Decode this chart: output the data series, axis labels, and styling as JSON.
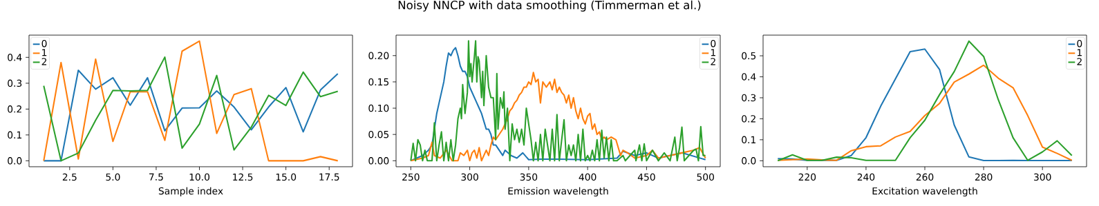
{
  "chart_data": [
    {
      "type": "line",
      "xlabel": "Sample index",
      "legend": "top left",
      "x": [
        1,
        2,
        3,
        4,
        5,
        6,
        7,
        8,
        9,
        10,
        11,
        12,
        13,
        14,
        15,
        16,
        17,
        18
      ],
      "xlim": [
        0.15,
        18.85
      ],
      "ylim": [
        -0.023,
        0.486
      ],
      "xticks": [
        2.5,
        {
          "value": 5,
          "label": "5.0"
        },
        7.5,
        {
          "value": 10,
          "label": "10.0"
        },
        12.5,
        {
          "value": 15,
          "label": "15.0"
        },
        17.5
      ],
      "yticks": [
        {
          "value": 0,
          "label": "0.0"
        },
        0.1,
        0.2,
        0.3,
        0.4
      ],
      "series": [
        {
          "name": "0",
          "color": "#1f77b4",
          "values": [
            0,
            0,
            0.35,
            0.277,
            0.321,
            0.215,
            0.321,
            0.116,
            0.204,
            0.205,
            0.27,
            0.208,
            0.12,
            0.208,
            0.283,
            0.112,
            0.274,
            0.337
          ]
        },
        {
          "name": "1",
          "color": "#ff7f0e",
          "values": [
            0,
            0.38,
            0.007,
            0.393,
            0.075,
            0.267,
            0.267,
            0.079,
            0.424,
            0.463,
            0.106,
            0.256,
            0.279,
            0,
            0,
            0,
            0.016,
            0
          ]
        },
        {
          "name": "2",
          "color": "#2ca02c",
          "values": [
            0.29,
            0,
            0.03,
            0.157,
            0.272,
            0.27,
            0.272,
            0.401,
            0.049,
            0.142,
            0.33,
            0.042,
            0.13,
            0.253,
            0.214,
            0.343,
            0.248,
            0.269
          ]
        }
      ]
    },
    {
      "type": "line",
      "title": "Noisy NNCP with data smoothing (Timmerman et al.)",
      "xlabel": "Emission wavelength",
      "legend": "top right",
      "xlim": [
        237.5,
        512.5
      ],
      "ylim": [
        -0.0114,
        0.239
      ],
      "xticks": [
        250,
        300,
        350,
        400,
        450,
        500
      ],
      "yticks": [
        {
          "value": 0,
          "label": "0.00"
        },
        0.05,
        {
          "value": 0.1,
          "label": "0.10"
        },
        0.15,
        {
          "value": 0.2,
          "label": "0.20"
        }
      ],
      "series": [
        {
          "name": "0",
          "color": "#1f77b4",
          "x": [
            250,
            255,
            260,
            265,
            268,
            270,
            272,
            274,
            276,
            278,
            280,
            282,
            284,
            286,
            288,
            290,
            292,
            294,
            296,
            298,
            300,
            302,
            304,
            306,
            308,
            310,
            312,
            314,
            316,
            318,
            320,
            322,
            325,
            328,
            330,
            335,
            340,
            345,
            350,
            360,
            375,
            400,
            425,
            430,
            440,
            450,
            460,
            480,
            500
          ],
          "values": [
            0,
            0.005,
            0.01,
            0.02,
            0.03,
            0.06,
            0.09,
            0.11,
            0.13,
            0.15,
            0.18,
            0.205,
            0.2,
            0.21,
            0.215,
            0.2,
            0.18,
            0.17,
            0.17,
            0.16,
            0.14,
            0.13,
            0.12,
            0.11,
            0.1,
            0.09,
            0.075,
            0.06,
            0.06,
            0.05,
            0.03,
            0.03,
            0.02,
            0.01,
            0.02,
            0.01,
            0.005,
            0.015,
            0.002,
            0.003,
            0.003,
            0.002,
            0.005,
            0.018,
            0.01,
            0.015,
            0.005,
            0.015,
            0.002
          ]
        },
        {
          "name": "1",
          "color": "#ff7f0e",
          "x": [
            250,
            260,
            265,
            268,
            270,
            275,
            280,
            285,
            290,
            292,
            295,
            298,
            300,
            302,
            304,
            306,
            308,
            310,
            312,
            314,
            316,
            318,
            320,
            322,
            325,
            328,
            330,
            332,
            334,
            336,
            338,
            340,
            342,
            344,
            346,
            348,
            350,
            352,
            354,
            356,
            358,
            360,
            362,
            365,
            368,
            370,
            372,
            374,
            376,
            378,
            380,
            382,
            384,
            386,
            388,
            390,
            392,
            394,
            396,
            398,
            400,
            402,
            404,
            406,
            408,
            410,
            412,
            414,
            416,
            420,
            424,
            428,
            430,
            434,
            440,
            450,
            455,
            460,
            470,
            480,
            490,
            495,
            500
          ],
          "values": [
            0,
            0.005,
            0.01,
            0.035,
            0.01,
            0.005,
            0.02,
            0,
            0,
            0.015,
            0.01,
            0.02,
            0,
            0.015,
            0.02,
            0.005,
            0.025,
            0,
            0.01,
            0.02,
            0.01,
            0.03,
            0.045,
            0.04,
            0.05,
            0.06,
            0.07,
            0.08,
            0.095,
            0.1,
            0.11,
            0.115,
            0.125,
            0.13,
            0.14,
            0.14,
            0.15,
            0.145,
            0.168,
            0.15,
            0.155,
            0.11,
            0.15,
            0.14,
            0.15,
            0.135,
            0.155,
            0.13,
            0.14,
            0.13,
            0.125,
            0.11,
            0.125,
            0.1,
            0.12,
            0.095,
            0.08,
            0.1,
            0.08,
            0.07,
            0.085,
            0.09,
            0.06,
            0.07,
            0.05,
            0.055,
            0.04,
            0.045,
            0.04,
            0.045,
            0.04,
            0.01,
            0.02,
            0.015,
            0.005,
            0.01,
            0.02,
            0.005,
            0.01,
            0.015,
            0.02,
            0.025,
            0.005
          ]
        },
        {
          "name": "2",
          "color": "#2ca02c",
          "x": [
            250,
            252,
            254,
            256,
            258,
            260,
            262,
            264,
            268,
            270,
            272,
            274,
            276,
            278,
            280,
            282,
            284,
            286,
            288,
            290,
            292,
            293,
            294,
            296,
            298,
            299,
            300,
            301,
            302,
            304,
            305,
            306,
            307,
            308,
            310,
            311,
            312,
            314,
            316,
            318,
            320,
            322,
            323,
            324,
            326,
            328,
            329,
            330,
            332,
            334,
            336,
            338,
            340,
            342,
            344,
            346,
            348,
            350,
            352,
            354,
            356,
            358,
            360,
            362,
            364,
            366,
            368,
            370,
            372,
            374,
            376,
            378,
            380,
            382,
            384,
            386,
            388,
            390,
            392,
            394,
            396,
            398,
            400,
            402,
            404,
            406,
            408,
            410,
            412,
            414,
            416,
            418,
            420,
            422,
            425,
            430,
            432,
            440,
            441,
            444,
            446,
            448,
            450,
            455,
            460,
            465,
            470,
            474,
            476,
            478,
            480,
            482,
            490,
            492,
            494,
            496,
            498,
            500
          ],
          "values": [
            0,
            0.033,
            0,
            0.04,
            0.03,
            0,
            0.02,
            0,
            0,
            0.072,
            0,
            0.03,
            0.055,
            0,
            0.035,
            0,
            0.04,
            0,
            0.03,
            0.08,
            0.1,
            0.08,
            0.145,
            0.09,
            0.13,
            0.228,
            0.16,
            0.185,
            0.15,
            0.2,
            0.228,
            0.15,
            0.198,
            0.19,
            0.12,
            0.17,
            0.105,
            0.2,
            0.14,
            0.12,
            0.12,
            0.04,
            0.166,
            0.06,
            0.12,
            0.1,
            0.131,
            0.06,
            0.1,
            0,
            0.07,
            0.04,
            0.06,
            0.035,
            0.06,
            0.03,
            0.1,
            0.07,
            0.04,
            0,
            0.035,
            0,
            0.05,
            0,
            0.06,
            0.03,
            0,
            0.06,
            0,
            0.088,
            0,
            0.04,
            0.078,
            0,
            0.03,
            0.01,
            0.03,
            0,
            0.05,
            0,
            0.06,
            0,
            0.01,
            0,
            0.02,
            0,
            0.04,
            0,
            0.058,
            0.005,
            0.045,
            0,
            0.04,
            0,
            0,
            0.01,
            0,
            0.02,
            0,
            0.03,
            0,
            0.032,
            0,
            0.02,
            0,
            0.015,
            0,
            0.045,
            0,
            0.025,
            0.064,
            0,
            0.02,
            0.022,
            0,
            0.065,
            0.01,
            0.01
          ]
        }
      ]
    },
    {
      "type": "line",
      "xlabel": "Excitation wavelength",
      "legend": "top right",
      "x": [
        210,
        215,
        220,
        225,
        230,
        235,
        240,
        245,
        250,
        255,
        260,
        265,
        270,
        275,
        280,
        285,
        290,
        295,
        300,
        305,
        310
      ],
      "xlim": [
        205,
        315
      ],
      "ylim": [
        -0.0285,
        0.5985
      ],
      "xticks": [
        220,
        240,
        260,
        280,
        300
      ],
      "yticks": [
        {
          "value": 0,
          "label": "0.0"
        },
        0.1,
        0.2,
        0.3,
        0.4,
        0.5
      ],
      "series": [
        {
          "name": "0",
          "color": "#1f77b4",
          "values": [
            0.01,
            0.008,
            0.002,
            0.003,
            0.002,
            0.025,
            0.11,
            0.26,
            0.39,
            0.52,
            0.532,
            0.435,
            0.17,
            0.018,
            0.001,
            0.001,
            0.002,
            0.001,
            0.001,
            0.001,
            0.001
          ]
        },
        {
          "name": "1",
          "color": "#ff7f0e",
          "values": [
            0.002,
            0.005,
            0.008,
            0.004,
            0.002,
            0.048,
            0.067,
            0.071,
            0.113,
            0.14,
            0.215,
            0.273,
            0.375,
            0.413,
            0.455,
            0.393,
            0.348,
            0.215,
            0.065,
            0.035,
            0.002
          ]
        },
        {
          "name": "2",
          "color": "#2ca02c",
          "values": [
            0,
            0.028,
            0.002,
            0.002,
            0.017,
            0.014,
            0.002,
            0.002,
            0.002,
            0.11,
            0.193,
            0.315,
            0.425,
            0.57,
            0.497,
            0.29,
            0.11,
            0.002,
            0.042,
            0.095,
            0.025
          ]
        }
      ]
    }
  ]
}
